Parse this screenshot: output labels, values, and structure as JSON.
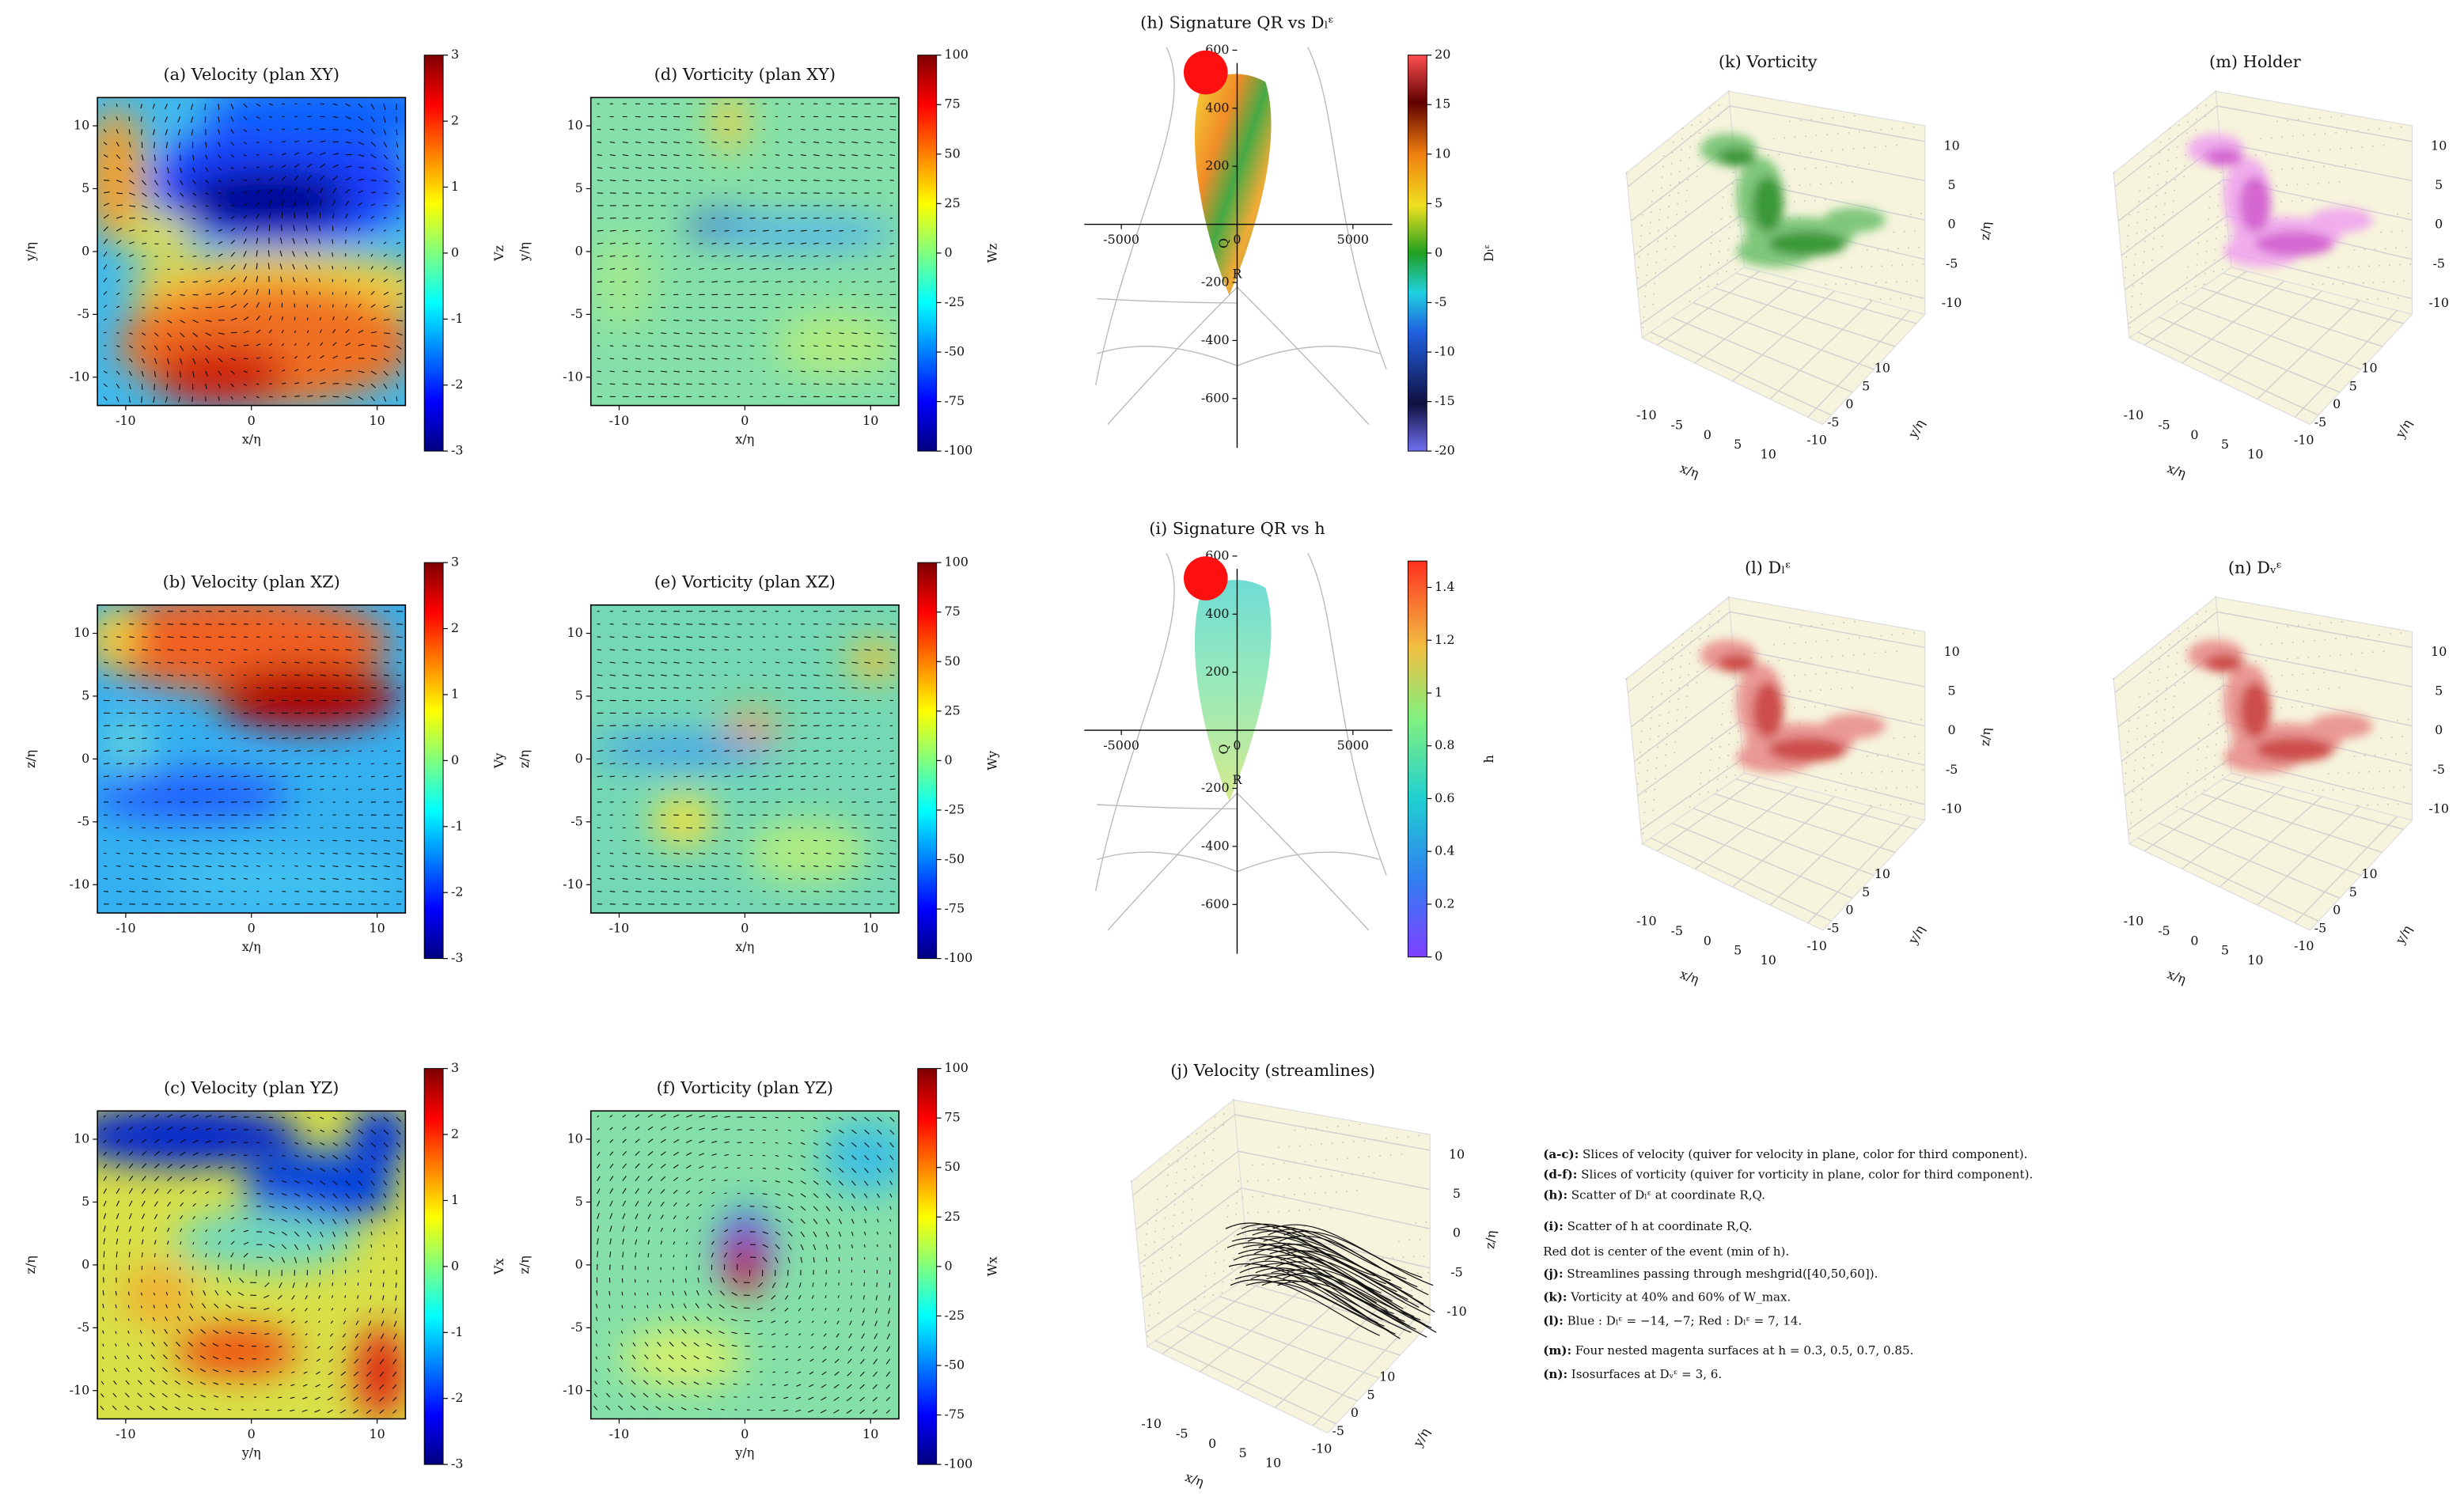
{
  "panels2d": [
    {
      "title": "(a) Velocity (plan XY)",
      "xlabel": "x/η",
      "ylabel": "y/η",
      "xlim": [
        -12.25,
        12.25
      ],
      "ylim": [
        -12.25,
        12.25
      ],
      "xticks": [
        -10,
        0,
        10
      ],
      "yticks": [
        -10,
        -5,
        0,
        5,
        10
      ],
      "cbar": {
        "label": "Vz",
        "lim": [
          -3,
          3
        ],
        "ticks": [
          -3,
          -2,
          -1,
          0,
          1,
          2,
          3
        ]
      }
    },
    {
      "title": "(b) Velocity (plan XZ)",
      "xlabel": "x/η",
      "ylabel": "z/η",
      "xlim": [
        -12.25,
        12.25
      ],
      "ylim": [
        -12.25,
        12.25
      ],
      "xticks": [
        -10,
        0,
        10
      ],
      "yticks": [
        -10,
        -5,
        0,
        5,
        10
      ],
      "cbar": {
        "label": "Vy",
        "lim": [
          -3,
          3
        ],
        "ticks": [
          -3,
          -2,
          -1,
          0,
          1,
          2,
          3
        ]
      }
    },
    {
      "title": "(c) Velocity (plan YZ)",
      "xlabel": "y/η",
      "ylabel": "z/η",
      "xlim": [
        -12.25,
        12.25
      ],
      "ylim": [
        -12.25,
        12.25
      ],
      "xticks": [
        -10,
        0,
        10
      ],
      "yticks": [
        -10,
        -5,
        0,
        5,
        10
      ],
      "cbar": {
        "label": "Vx",
        "lim": [
          -3,
          3
        ],
        "ticks": [
          -3,
          -2,
          -1,
          0,
          1,
          2,
          3
        ]
      }
    },
    {
      "title": "(d) Vorticity (plan XY)",
      "xlabel": "x/η",
      "ylabel": "y/η",
      "xlim": [
        -12.25,
        12.25
      ],
      "ylim": [
        -12.25,
        12.25
      ],
      "xticks": [
        -10,
        0,
        10
      ],
      "yticks": [
        -10,
        -5,
        0,
        5,
        10
      ],
      "cbar": {
        "label": "Wz",
        "lim": [
          -100,
          100
        ],
        "ticks": [
          -100,
          -75,
          -50,
          -25,
          0,
          25,
          50,
          75,
          100
        ]
      }
    },
    {
      "title": "(e) Vorticity (plan XZ)",
      "xlabel": "x/η",
      "ylabel": "z/η",
      "xlim": [
        -12.25,
        12.25
      ],
      "ylim": [
        -12.25,
        12.25
      ],
      "xticks": [
        -10,
        0,
        10
      ],
      "yticks": [
        -10,
        -5,
        0,
        5,
        10
      ],
      "cbar": {
        "label": "Wy",
        "lim": [
          -100,
          100
        ],
        "ticks": [
          -100,
          -75,
          -50,
          -25,
          0,
          25,
          50,
          75,
          100
        ]
      }
    },
    {
      "title": "(f) Vorticity (plan YZ)",
      "xlabel": "y/η",
      "ylabel": "z/η",
      "xlim": [
        -12.25,
        12.25
      ],
      "ylim": [
        -12.25,
        12.25
      ],
      "xticks": [
        -10,
        0,
        10
      ],
      "yticks": [
        -10,
        -5,
        0,
        5,
        10
      ],
      "cbar": {
        "label": "Wx",
        "lim": [
          -100,
          100
        ],
        "ticks": [
          -100,
          -75,
          -50,
          -25,
          0,
          25,
          50,
          75,
          100
        ]
      }
    }
  ],
  "scatters": [
    {
      "title": "(h) Signature QR vs Dₗᵋ",
      "xlabel": "R",
      "ylabel": "Q",
      "xlim": [
        -6600,
        6700
      ],
      "ylim": [
        -770,
        610
      ],
      "xticks": [
        -5000,
        0,
        5000
      ],
      "yticks": [
        -600,
        -400,
        -200,
        200,
        400,
        600
      ],
      "cbar": {
        "label": "Dₗᵋ",
        "lim": [
          -20,
          20
        ],
        "ticks": [
          -20,
          -15,
          -10,
          -5,
          0,
          5,
          10,
          15,
          20
        ]
      }
    },
    {
      "title": "(i) Signature QR vs h",
      "xlabel": "R",
      "ylabel": "Q",
      "xlim": [
        -6600,
        6700
      ],
      "ylim": [
        -770,
        610
      ],
      "xticks": [
        -5000,
        0,
        5000
      ],
      "yticks": [
        -600,
        -400,
        -200,
        200,
        400,
        600
      ],
      "cbar": {
        "label": "h",
        "lim": [
          0,
          1.5
        ],
        "ticks": [
          0.0,
          0.2,
          0.4,
          0.6,
          0.8,
          1.0,
          1.2,
          1.4
        ]
      }
    }
  ],
  "panels3d": [
    {
      "title": "(k) Vorticity",
      "xlabel": "x/η",
      "ylabel": "y/η",
      "zlabel": "z/η",
      "lim": [
        -12,
        12
      ],
      "xticks": [
        -10,
        -5,
        0,
        5,
        10
      ],
      "yticks": [
        -10,
        -5,
        0,
        5,
        10
      ],
      "zticks": [
        -10,
        -5,
        0,
        5,
        10
      ]
    },
    {
      "title": "(m) Holder",
      "xlabel": "x/η",
      "ylabel": "y/η",
      "zlabel": "z/η",
      "lim": [
        -12,
        12
      ],
      "xticks": [
        -10,
        -5,
        0,
        5,
        10
      ],
      "yticks": [
        -10,
        -5,
        0,
        5,
        10
      ],
      "zticks": [
        -10,
        -5,
        0,
        5,
        10
      ]
    },
    {
      "title": "(l) Dₗᵋ",
      "xlabel": "x/η",
      "ylabel": "y/η",
      "zlabel": "z/η",
      "lim": [
        -12,
        12
      ],
      "xticks": [
        -10,
        -5,
        0,
        5,
        10
      ],
      "yticks": [
        -10,
        -5,
        0,
        5,
        10
      ],
      "zticks": [
        -10,
        -5,
        0,
        5,
        10
      ]
    },
    {
      "title": "(n) Dᵥᵋ",
      "xlabel": "x/η",
      "ylabel": "y/η",
      "zlabel": "z/η",
      "lim": [
        -12,
        12
      ],
      "xticks": [
        -10,
        -5,
        0,
        5,
        10
      ],
      "yticks": [
        -10,
        -5,
        0,
        5,
        10
      ],
      "zticks": [
        -10,
        -5,
        0,
        5,
        10
      ]
    },
    {
      "title": "(j) Velocity (streamlines)",
      "xlabel": "x/η",
      "ylabel": "y/η",
      "zlabel": "z/η",
      "lim": [
        -12,
        12
      ],
      "xticks": [
        -10,
        -5,
        0,
        5,
        10
      ],
      "yticks": [
        -10,
        -5,
        0,
        5,
        10
      ],
      "zticks": [
        -10,
        -5,
        0,
        5,
        10
      ]
    }
  ],
  "caption": [
    {
      "tag": "(a-c):",
      "text": " Slices of velocity (quiver for velocity in plane, color for third component)."
    },
    {
      "tag": "(d-f):",
      "text": " Slices of vorticity (quiver for vorticity in plane, color for third component)."
    },
    {
      "tag": "(h):",
      "text": " Scatter of Dₗᵋ at coordinate R,Q."
    },
    {
      "tag": "(i):",
      "text": " Scatter of h at coordinate R,Q."
    },
    {
      "tag": "",
      "text": "Red dot is center of the event (min of h)."
    },
    {
      "tag": "(j):",
      "text": " Streamlines passing through meshgrid([40,50,60])."
    },
    {
      "tag": "(k):",
      "text": " Vorticity at 40% and 60% of W_max."
    },
    {
      "tag": "(l):",
      "text": " Blue : Dₗᵋ = −14, −7; Red : Dₗᵋ = 7, 14."
    },
    {
      "tag": "(m):",
      "text": " Four nested magenta surfaces at h = 0.3, 0.5, 0.7, 0.85."
    },
    {
      "tag": "(n):",
      "text": " Isosurfaces at Dᵥᵋ = 3, 6."
    }
  ]
}
